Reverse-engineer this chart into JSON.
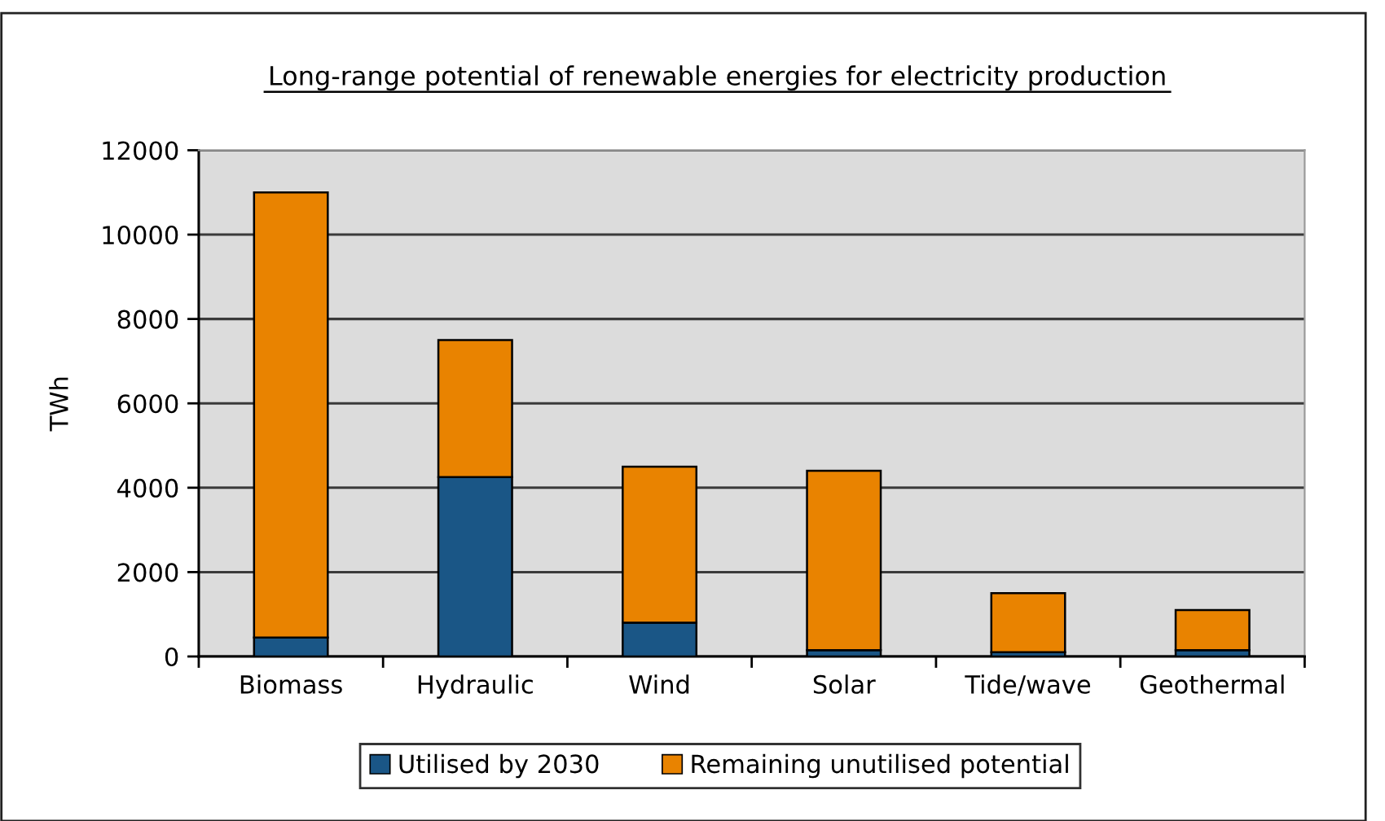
{
  "chart_data": {
    "type": "bar",
    "title": "Long-range potential of renewable energies for electricity production",
    "ylabel": "TWh",
    "categories": [
      "Biomass",
      "Hydraulic",
      "Wind",
      "Solar",
      "Tide/wave",
      "Geothermal"
    ],
    "stacked": true,
    "series": [
      {
        "name": "Utilised by 2030",
        "color": "#1a5686",
        "values": [
          450,
          4250,
          800,
          150,
          100,
          150
        ]
      },
      {
        "name": "Remaining unutilised potential",
        "color": "#e98300",
        "values": [
          10550,
          3250,
          3700,
          4250,
          1400,
          950
        ]
      }
    ],
    "ylim": [
      0,
      12000
    ],
    "yticks": [
      0,
      2000,
      4000,
      6000,
      8000,
      10000,
      12000
    ],
    "grid": "y",
    "legend": "bottom"
  }
}
